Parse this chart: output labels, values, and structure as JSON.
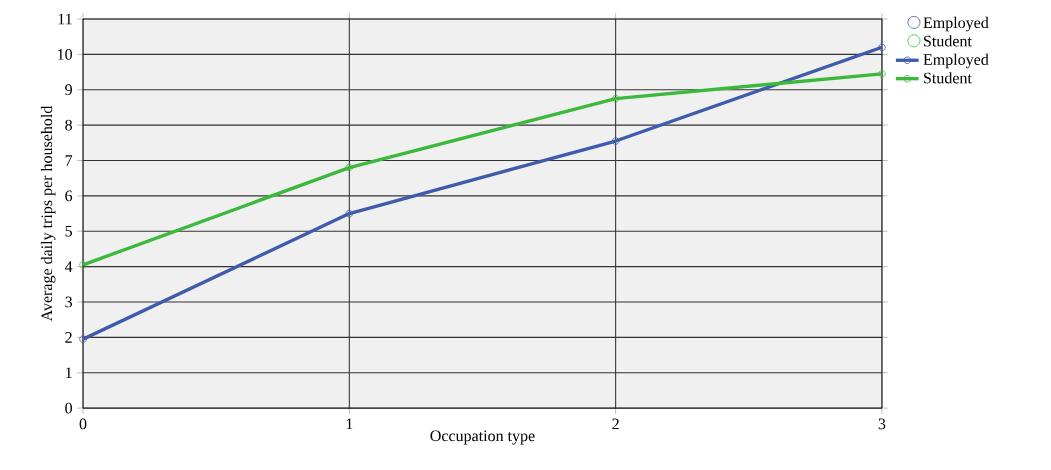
{
  "chart_data": {
    "type": "line",
    "xlabel": "Occupation type",
    "ylabel": "Average daily trips per household",
    "x": [
      0,
      1,
      2,
      3
    ],
    "series": [
      {
        "name": "Employed",
        "color": "#3f5bab",
        "values": [
          1.95,
          5.5,
          7.55,
          10.2
        ]
      },
      {
        "name": "Student",
        "color": "#3cb93c",
        "values": [
          4.05,
          6.8,
          8.75,
          9.45
        ]
      }
    ],
    "xlim": [
      0,
      3
    ],
    "xticks": [
      0,
      1,
      2,
      3
    ],
    "ylim": [
      0,
      11
    ],
    "yticks": [
      0,
      1,
      2,
      3,
      4,
      5,
      6,
      7,
      8,
      9,
      10,
      11
    ],
    "grid": true,
    "legend": "top right",
    "marker": "circle",
    "line_style": "solid"
  }
}
